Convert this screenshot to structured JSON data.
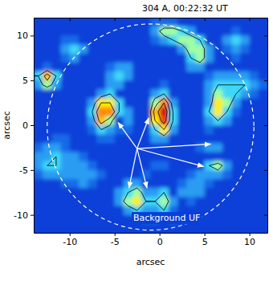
{
  "chart_data": {
    "type": "heatmap",
    "title": "304 A, 00:22:32 UT",
    "x_label": "arcsec",
    "y_label": "arcsec",
    "xlim": [
      -14,
      12
    ],
    "ylim": [
      -12,
      12
    ],
    "xticks": [
      -10,
      -5,
      0,
      5,
      10
    ],
    "yticks": [
      -10,
      -5,
      0,
      5,
      10
    ],
    "x": [
      -13.5,
      -12.5,
      -11.5,
      -10.5,
      -9.5,
      -8.5,
      -7.5,
      -6.5,
      -5.5,
      -4.5,
      -3.5,
      -2.5,
      -1.5,
      -0.5,
      0.5,
      1.5,
      2.5,
      3.5,
      4.5,
      5.5,
      6.5,
      7.5,
      8.5,
      9.5,
      10.5,
      11.5
    ],
    "y": [
      11.5,
      10.5,
      9.5,
      8.5,
      7.5,
      6.5,
      5.5,
      4.5,
      3.5,
      2.5,
      1.5,
      0.5,
      -0.5,
      -1.5,
      -2.5,
      -3.5,
      -4.5,
      -5.5,
      -6.5,
      -7.5,
      -8.5,
      -9.5,
      -10.5,
      -11.5
    ],
    "z": [
      [
        1,
        1,
        1,
        1,
        1,
        1,
        1,
        1,
        1,
        1,
        1,
        1,
        1,
        2,
        2,
        2,
        1,
        1,
        1,
        1,
        1,
        1,
        1,
        1,
        1,
        1
      ],
      [
        1,
        1,
        1,
        1,
        1,
        1,
        1,
        1,
        1,
        1,
        1,
        1,
        1,
        3,
        5,
        5,
        4,
        3,
        1,
        1,
        1,
        1,
        2,
        1,
        1,
        1
      ],
      [
        1,
        1,
        1,
        2,
        2,
        1,
        1,
        1,
        1,
        1,
        1,
        1,
        1,
        2,
        3,
        4,
        5,
        5,
        4,
        1,
        1,
        3,
        4,
        3,
        1,
        1
      ],
      [
        1,
        1,
        1,
        3,
        4,
        3,
        1,
        1,
        1,
        1,
        1,
        1,
        1,
        1,
        1,
        1,
        3,
        5,
        5,
        3,
        1,
        2,
        3,
        2,
        1,
        1
      ],
      [
        1,
        1,
        1,
        2,
        3,
        1,
        1,
        1,
        1,
        1,
        1,
        1,
        1,
        1,
        1,
        1,
        1,
        4,
        5,
        3,
        1,
        1,
        2,
        1,
        1,
        1
      ],
      [
        1,
        2,
        1,
        1,
        1,
        1,
        1,
        1,
        2,
        3,
        3,
        1,
        1,
        1,
        1,
        1,
        1,
        3,
        3,
        1,
        1,
        1,
        1,
        1,
        1,
        1
      ],
      [
        4,
        7,
        4,
        1,
        1,
        1,
        1,
        1,
        3,
        4,
        3,
        1,
        1,
        1,
        1,
        1,
        1,
        1,
        1,
        2,
        3,
        3,
        3,
        3,
        2,
        1
      ],
      [
        3,
        5,
        3,
        1,
        1,
        1,
        1,
        1,
        3,
        3,
        1,
        1,
        1,
        1,
        2,
        1,
        1,
        1,
        1,
        3,
        4,
        4,
        4,
        4,
        3,
        2
      ],
      [
        1,
        1,
        1,
        1,
        1,
        1,
        1,
        3,
        4,
        1,
        1,
        1,
        1,
        3,
        4,
        1,
        1,
        1,
        1,
        3,
        5,
        4,
        4,
        3,
        2,
        1
      ],
      [
        1,
        1,
        1,
        1,
        1,
        1,
        3,
        6,
        6,
        4,
        1,
        1,
        1,
        5,
        8,
        3,
        1,
        1,
        1,
        3,
        6,
        5,
        3,
        1,
        1,
        1
      ],
      [
        1,
        1,
        1,
        1,
        1,
        1,
        4,
        8,
        8,
        4,
        3,
        1,
        1,
        7,
        10,
        4,
        1,
        1,
        1,
        4,
        6,
        4,
        2,
        1,
        1,
        1
      ],
      [
        1,
        1,
        1,
        1,
        1,
        1,
        3,
        7,
        5,
        1,
        3,
        1,
        1,
        6,
        9,
        4,
        1,
        1,
        1,
        3,
        4,
        3,
        1,
        1,
        1,
        1
      ],
      [
        1,
        1,
        1,
        1,
        1,
        1,
        2,
        4,
        3,
        2,
        2,
        1,
        1,
        4,
        6,
        3,
        1,
        1,
        1,
        2,
        1,
        1,
        1,
        1,
        1,
        1
      ],
      [
        1,
        1,
        2,
        2,
        1,
        1,
        1,
        2,
        2,
        1,
        1,
        1,
        1,
        3,
        3,
        1,
        1,
        1,
        1,
        1,
        1,
        1,
        1,
        1,
        1,
        1
      ],
      [
        2,
        3,
        3,
        2,
        1,
        1,
        1,
        1,
        1,
        1,
        1,
        1,
        1,
        1,
        1,
        1,
        1,
        1,
        2,
        3,
        3,
        1,
        1,
        1,
        1,
        1
      ],
      [
        3,
        3,
        4,
        3,
        3,
        2,
        1,
        1,
        1,
        1,
        1,
        1,
        1,
        1,
        1,
        1,
        1,
        1,
        1,
        1,
        1,
        1,
        1,
        1,
        1,
        1
      ],
      [
        3,
        4,
        4,
        3,
        3,
        3,
        2,
        1,
        1,
        1,
        1,
        1,
        1,
        2,
        2,
        1,
        1,
        1,
        1,
        4,
        5,
        3,
        1,
        1,
        1,
        1
      ],
      [
        2,
        3,
        3,
        3,
        3,
        3,
        3,
        2,
        1,
        1,
        1,
        1,
        2,
        1,
        1,
        1,
        1,
        2,
        3,
        3,
        3,
        2,
        1,
        1,
        1,
        1
      ],
      [
        1,
        1,
        1,
        2,
        2,
        3,
        2,
        1,
        1,
        1,
        3,
        3,
        1,
        1,
        1,
        1,
        2,
        3,
        3,
        2,
        1,
        1,
        1,
        1,
        1,
        1
      ],
      [
        1,
        1,
        1,
        1,
        1,
        1,
        1,
        1,
        1,
        3,
        4,
        5,
        3,
        3,
        4,
        1,
        3,
        3,
        3,
        1,
        1,
        1,
        1,
        1,
        1,
        1
      ],
      [
        1,
        1,
        1,
        1,
        1,
        1,
        1,
        1,
        1,
        3,
        5,
        6,
        4,
        4,
        5,
        3,
        1,
        2,
        1,
        1,
        1,
        1,
        1,
        1,
        1,
        1
      ],
      [
        1,
        1,
        1,
        1,
        1,
        1,
        1,
        1,
        1,
        1,
        3,
        4,
        3,
        3,
        4,
        2,
        1,
        1,
        1,
        1,
        1,
        1,
        1,
        1,
        1,
        1
      ],
      [
        1,
        1,
        1,
        1,
        1,
        1,
        1,
        1,
        1,
        1,
        1,
        1,
        2,
        2,
        1,
        2,
        1,
        1,
        1,
        1,
        1,
        1,
        1,
        1,
        1,
        1
      ],
      [
        1,
        1,
        1,
        1,
        1,
        1,
        1,
        1,
        1,
        1,
        1,
        1,
        1,
        1,
        1,
        1,
        1,
        1,
        1,
        1,
        1,
        1,
        1,
        1,
        1,
        1
      ]
    ],
    "color_range": [
      0,
      10
    ],
    "contour_levels": [
      4,
      6,
      8
    ],
    "circle": {
      "center": [
        -1,
        -0.2
      ],
      "radius": 11.5
    },
    "arrows": {
      "origin": [
        -2.5,
        -2.6
      ],
      "targets": [
        [
          -4.6,
          0.3
        ],
        [
          -1.2,
          0.8
        ],
        [
          5.7,
          -2.1
        ],
        [
          4.9,
          -4.6
        ],
        [
          -3.4,
          -7
        ],
        [
          -1.4,
          -7
        ]
      ]
    },
    "annotations": [
      {
        "text": "Background UF",
        "x": 0.8,
        "y": -10.4
      }
    ]
  }
}
